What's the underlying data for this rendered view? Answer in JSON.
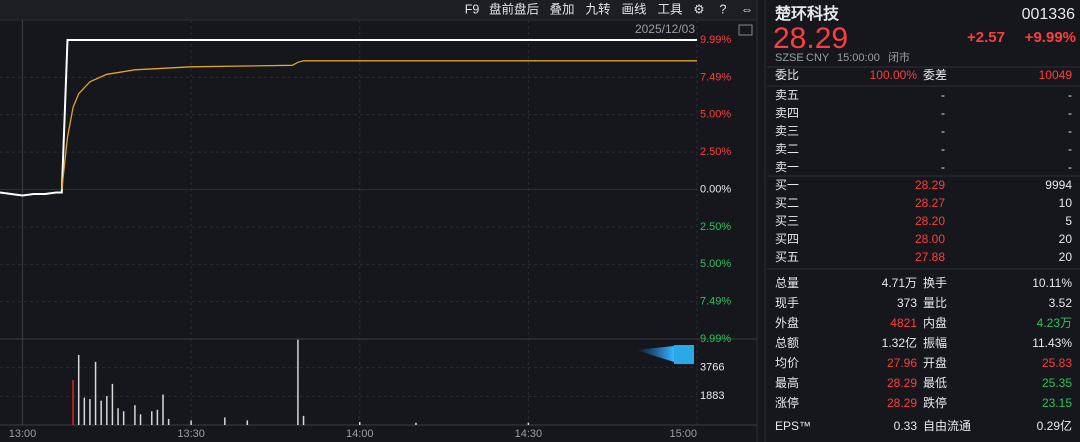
{
  "toolbar": {
    "items": [
      "F9",
      "盘前盘后",
      "叠加",
      "九转",
      "画线",
      "工具"
    ]
  },
  "date": "2025/12/03",
  "chart_data": [
    {
      "type": "line",
      "x": [
        776,
        778,
        780,
        782,
        784,
        786,
        787,
        788,
        789,
        790,
        792,
        795,
        800,
        810,
        828,
        829,
        830,
        900
      ],
      "series": [
        {
          "name": "price",
          "color": "#ffffff",
          "values": [
            -0.2,
            -0.3,
            -0.4,
            -0.3,
            -0.3,
            -0.2,
            -0.2,
            9.99,
            9.99,
            9.99,
            9.99,
            9.99,
            9.99,
            9.99,
            9.99,
            9.99,
            9.99,
            9.99
          ]
        },
        {
          "name": "average",
          "color": "#e0a526",
          "values": [
            null,
            null,
            null,
            null,
            null,
            null,
            0,
            3.5,
            5.5,
            6.4,
            7.2,
            7.7,
            8.0,
            8.2,
            8.3,
            8.5,
            8.6,
            8.6
          ]
        }
      ],
      "xlim": [
        776,
        900
      ],
      "xticks": [
        {
          "value": 780,
          "label": "13:00"
        },
        {
          "value": 810,
          "label": "13:30"
        },
        {
          "value": 840,
          "label": "14:00"
        },
        {
          "value": 870,
          "label": "14:30"
        },
        {
          "value": 900,
          "label": "15:00"
        }
      ],
      "ylim": [
        -9.99,
        9.99
      ],
      "yticks": [
        {
          "value": 9.99,
          "label": "9.99%"
        },
        {
          "value": 7.49,
          "label": "7.49%"
        },
        {
          "value": 5,
          "label": "5.00%"
        },
        {
          "value": 2.5,
          "label": "2.50%"
        },
        {
          "value": 0,
          "label": "0.00%"
        },
        {
          "value": -2.5,
          "label": "2.50%"
        },
        {
          "value": -5,
          "label": "5.00%"
        },
        {
          "value": -7.49,
          "label": "7.49%"
        },
        {
          "value": -9.99,
          "label": "9.99%"
        }
      ],
      "grid": true
    },
    {
      "type": "bar",
      "x": [
        789,
        790,
        791,
        792,
        793,
        794,
        795,
        796,
        797,
        798,
        800,
        801,
        803,
        804,
        805,
        806,
        810,
        816,
        820,
        829,
        830,
        840,
        850,
        870
      ],
      "values": [
        2950,
        4600,
        1800,
        1700,
        4150,
        1600,
        1900,
        2700,
        1100,
        900,
        1300,
        700,
        900,
        1000,
        2000,
        400,
        300,
        500,
        300,
        5600,
        600,
        200,
        150,
        150
      ],
      "colors": [
        "#e02424",
        "#d8d8d8",
        "#d8d8d8",
        "#d8d8d8",
        "#d8d8d8",
        "#d8d8d8",
        "#d8d8d8",
        "#d8d8d8",
        "#d8d8d8",
        "#d8d8d8",
        "#d8d8d8",
        "#d8d8d8",
        "#d8d8d8",
        "#d8d8d8",
        "#d8d8d8",
        "#d8d8d8",
        "#d8d8d8",
        "#d8d8d8",
        "#d8d8d8",
        "#d8d8d8",
        "#d8d8d8",
        "#d8d8d8",
        "#d8d8d8",
        "#d8d8d8"
      ],
      "xlim": [
        776,
        900
      ],
      "ylim": [
        0,
        5649
      ],
      "yticks": [
        1883,
        3766
      ],
      "grid": true
    }
  ],
  "quote": {
    "name": "楚环科技",
    "code": "001336",
    "price": "28.29",
    "change": "+2.57",
    "change_pct": "+9.99%",
    "exchange": "SZSE",
    "currency": "CNY",
    "time": "15:00:00",
    "status": "闭市"
  },
  "committee": {
    "label": "委比",
    "value": "100.00%",
    "label2": "委差",
    "value2": "10049"
  },
  "asks": [
    [
      "卖五",
      "-",
      "-"
    ],
    [
      "卖四",
      "-",
      "-"
    ],
    [
      "卖三",
      "-",
      "-"
    ],
    [
      "卖二",
      "-",
      "-"
    ],
    [
      "卖一",
      "-",
      "-"
    ]
  ],
  "bids": [
    [
      "买一",
      "28.29",
      "9994"
    ],
    [
      "买二",
      "28.27",
      "10"
    ],
    [
      "买三",
      "28.20",
      "5"
    ],
    [
      "买四",
      "28.00",
      "20"
    ],
    [
      "买五",
      "27.88",
      "20"
    ]
  ],
  "stats": [
    [
      "总量",
      "4.71万",
      "换手",
      "10.11%"
    ],
    [
      "现手",
      "373",
      "量比",
      "3.52"
    ],
    [
      "外盘",
      "4821",
      "内盘",
      "4.23万"
    ],
    [
      "总额",
      "1.32亿",
      "振幅",
      "11.43%"
    ],
    [
      "均价",
      "27.96",
      "开盘",
      "25.83"
    ],
    [
      "最高",
      "28.29",
      "最低",
      "25.35"
    ],
    [
      "涨停",
      "28.29",
      "跌停",
      "23.15"
    ],
    [
      "EPS™",
      "0.33",
      "自由流通",
      "0.29亿"
    ]
  ]
}
